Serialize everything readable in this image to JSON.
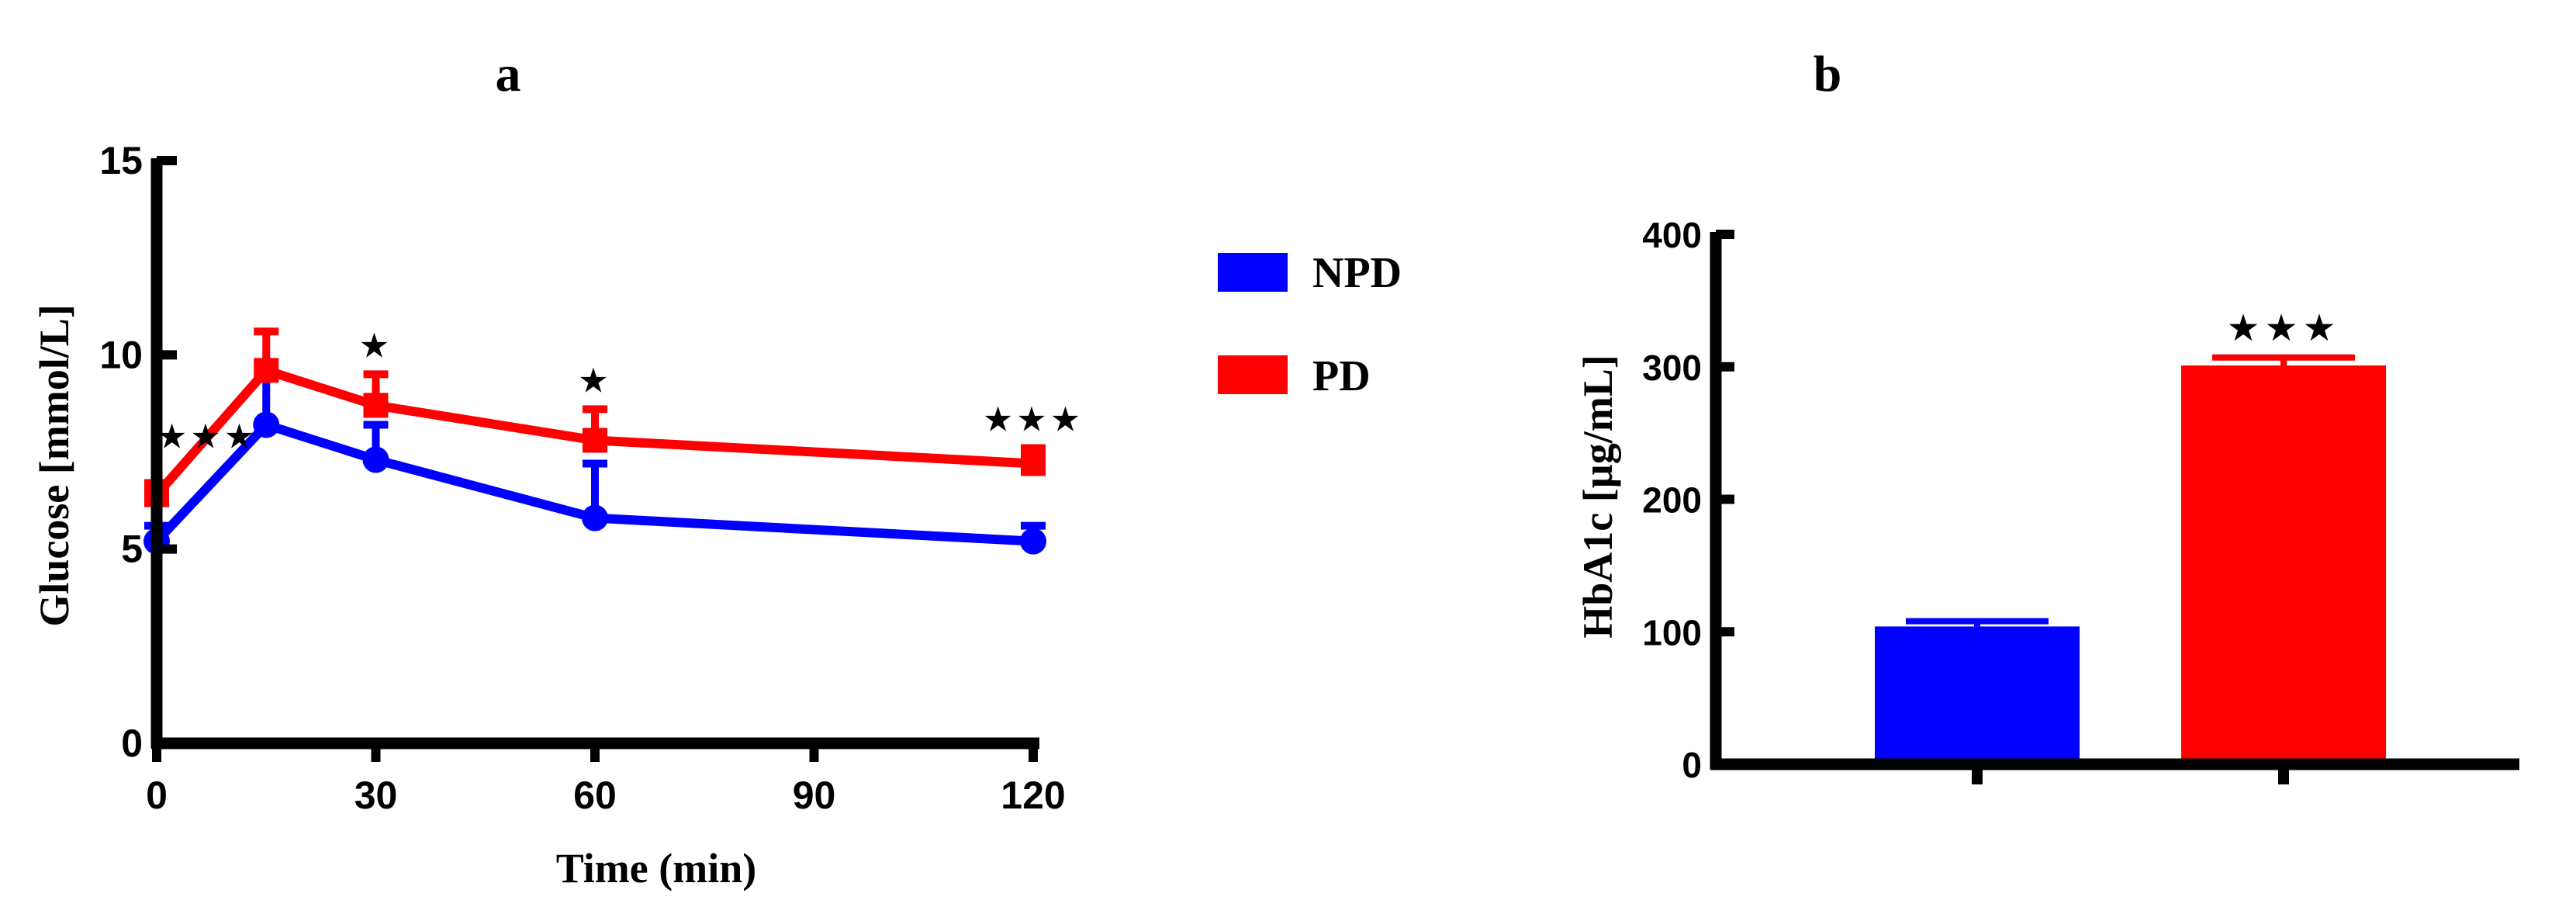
{
  "panels": {
    "a_label": "a",
    "b_label": "b"
  },
  "legend": {
    "items": [
      {
        "label": "NPD",
        "color": "#0000ff"
      },
      {
        "label": "PD",
        "color": "#ff0000"
      }
    ]
  },
  "chart_data": [
    {
      "panel": "a",
      "type": "line",
      "xlabel": "Time (min)",
      "ylabel": "Glucose [mmol/L]",
      "xlim": [
        0,
        120
      ],
      "ylim": [
        0,
        15
      ],
      "xticks": [
        0,
        30,
        60,
        90,
        120
      ],
      "yticks": [
        0,
        5,
        10,
        15
      ],
      "x": [
        0,
        15,
        30,
        60,
        120
      ],
      "series": [
        {
          "name": "NPD",
          "color": "#0000ff",
          "values": [
            5.2,
            8.2,
            7.3,
            5.8,
            5.2
          ],
          "error_up": [
            0.4,
            1.2,
            0.9,
            1.4,
            0.4
          ]
        },
        {
          "name": "PD",
          "color": "#ff0000",
          "values": [
            6.4,
            9.6,
            8.7,
            7.8,
            7.2
          ],
          "error_up": [
            0.3,
            1.0,
            0.8,
            0.8,
            0.4
          ]
        }
      ],
      "significance": [
        {
          "x": 0,
          "label": "★★★"
        },
        {
          "x": 30,
          "label": "★"
        },
        {
          "x": 60,
          "label": "★"
        },
        {
          "x": 120,
          "label": "★★★"
        }
      ]
    },
    {
      "panel": "b",
      "type": "bar",
      "xlabel": "",
      "ylabel": "HbA1c [µg/mL]",
      "ylim": [
        0,
        400
      ],
      "yticks": [
        0,
        100,
        200,
        300,
        400
      ],
      "categories": [
        "NPD",
        "PD"
      ],
      "colors": [
        "#0000ff",
        "#ff0000"
      ],
      "values": [
        104,
        301
      ],
      "error_up": [
        4,
        6
      ],
      "significance": [
        {
          "category": "PD",
          "label": "★★★"
        }
      ]
    }
  ]
}
